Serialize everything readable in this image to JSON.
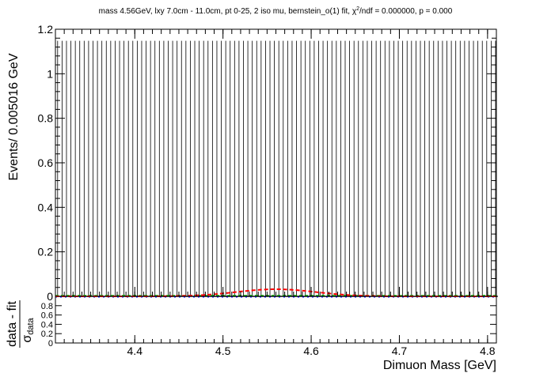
{
  "chart_data": {
    "type": "scatter",
    "title": "mass 4.56GeV, lxy 7.0cm - 11.0cm, pt 0-25, 2 iso mu, bernstein_o(1) fit, χ²/ndf = 0.000000, p = 0.000",
    "title_parts": {
      "before_chi": "mass 4.56GeV, lxy 7.0cm - 11.0cm, pt 0-25, 2 iso mu, bernstein_o(1) fit, ",
      "chi": "χ",
      "sup": "2",
      "after_chi": "/ndf = 0.000000, p = 0.000"
    },
    "main": {
      "ylabel": "Events/ 0.005016 GeV",
      "xlim": [
        4.31,
        4.81
      ],
      "ylim": [
        0,
        1.2
      ],
      "yticks": [
        "0",
        "0.2",
        "0.4",
        "0.6",
        "0.8",
        "1",
        "1.2"
      ],
      "ytick_values": [
        0,
        0.2,
        0.4,
        0.6,
        0.8,
        1.0,
        1.2
      ],
      "data_bins": {
        "n": 100,
        "x_start": 4.31,
        "bin_width": 0.005016,
        "values": 0,
        "error_up": 1.148,
        "color": "#000000"
      },
      "signal_curve": {
        "color": "#ff0000",
        "mean": 4.56,
        "sigma": 0.045,
        "peak": 0.032,
        "style": "dashed"
      },
      "background_curve": {
        "color": "#00aa00",
        "value": 0.0,
        "style": "dashed"
      },
      "total_fit_color": "#0000ff"
    },
    "ratio": {
      "ylabel_num": "data - fit",
      "ylabel_den_sym": "σ",
      "ylabel_den_sub": "data",
      "ylim": [
        0,
        1
      ],
      "yticks": [
        "0",
        "0.2",
        "0.4",
        "0.6",
        "0.8"
      ],
      "ytick_values": [
        0,
        0.2,
        0.4,
        0.6,
        0.8
      ],
      "points_value": 0,
      "points_color": "#ff0000"
    },
    "xaxis": {
      "xlabel": "Dimuon Mass [GeV]",
      "xticks": [
        "4.4",
        "4.5",
        "4.6",
        "4.7",
        "4.8"
      ],
      "xtick_values": [
        4.4,
        4.5,
        4.6,
        4.7,
        4.8
      ]
    },
    "legend": "none",
    "grid": false
  }
}
